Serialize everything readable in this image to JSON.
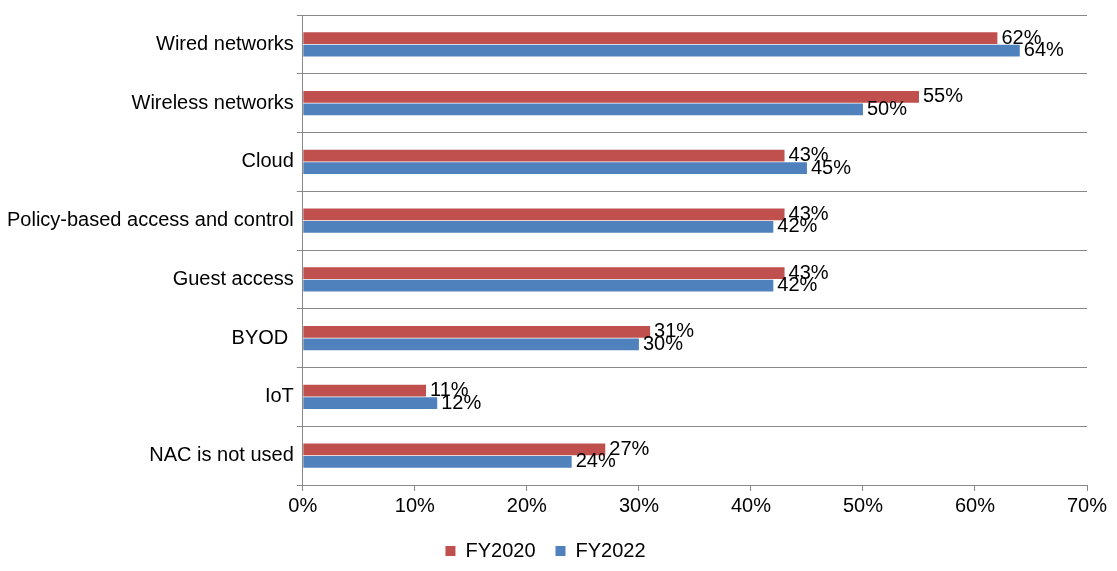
{
  "chart_data": {
    "type": "bar",
    "orientation": "horizontal",
    "categories": [
      "Wired networks",
      "Wireless networks",
      "Cloud",
      "Policy-based access and control",
      "Guest access",
      "BYOD ",
      "IoT",
      "NAC is not used"
    ],
    "series": [
      {
        "name": "FY2020",
        "color": "#c0504d",
        "values": [
          62,
          55,
          43,
          43,
          43,
          31,
          11,
          27
        ],
        "value_labels": [
          "62%",
          "55%",
          "43%",
          "43%",
          "43%",
          "31%",
          "11%",
          "27%"
        ]
      },
      {
        "name": "FY2022",
        "color": "#4f81bd",
        "values": [
          64,
          50,
          45,
          42,
          42,
          30,
          12,
          24
        ],
        "value_labels": [
          "64%",
          "50%",
          "45%",
          "42%",
          "42%",
          "30%",
          "12%",
          "24%"
        ]
      }
    ],
    "xlim": [
      0,
      70
    ],
    "xticks": [
      {
        "value": 0,
        "label": "0%"
      },
      {
        "value": 10,
        "label": "10%"
      },
      {
        "value": 20,
        "label": "20%"
      },
      {
        "value": 30,
        "label": "30%"
      },
      {
        "value": 40,
        "label": "40%"
      },
      {
        "value": 50,
        "label": "50%"
      },
      {
        "value": 60,
        "label": "60%"
      },
      {
        "value": 70,
        "label": "70%"
      }
    ],
    "grid": "y",
    "legend": "bottom"
  }
}
